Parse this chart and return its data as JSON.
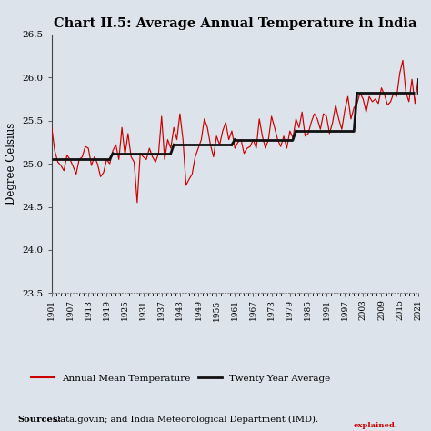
{
  "title": "Chart II.5: Average Annual Temperature in India",
  "ylabel": "Degree Celsius",
  "source_bold": "Sources:",
  "source_rest": " Data.gov.in; and India Meteorological Department (IMD).",
  "legend_line1": "Annual Mean Temperature",
  "legend_line2": "Twenty Year Average",
  "bg_color": "#dce3ea",
  "line_color": "#cc0000",
  "avg_line_color": "#111111",
  "ylim": [
    23.5,
    26.5
  ],
  "years": [
    1901,
    1902,
    1903,
    1904,
    1905,
    1906,
    1907,
    1908,
    1909,
    1910,
    1911,
    1912,
    1913,
    1914,
    1915,
    1916,
    1917,
    1918,
    1919,
    1920,
    1921,
    1922,
    1923,
    1924,
    1925,
    1926,
    1927,
    1928,
    1929,
    1930,
    1931,
    1932,
    1933,
    1934,
    1935,
    1936,
    1937,
    1938,
    1939,
    1940,
    1941,
    1942,
    1943,
    1944,
    1945,
    1946,
    1947,
    1948,
    1949,
    1950,
    1951,
    1952,
    1953,
    1954,
    1955,
    1956,
    1957,
    1958,
    1959,
    1960,
    1961,
    1962,
    1963,
    1964,
    1965,
    1966,
    1967,
    1968,
    1969,
    1970,
    1971,
    1972,
    1973,
    1974,
    1975,
    1976,
    1977,
    1978,
    1979,
    1980,
    1981,
    1982,
    1983,
    1984,
    1985,
    1986,
    1987,
    1988,
    1989,
    1990,
    1991,
    1992,
    1993,
    1994,
    1995,
    1996,
    1997,
    1998,
    1999,
    2000,
    2001,
    2002,
    2003,
    2004,
    2005,
    2006,
    2007,
    2008,
    2009,
    2010,
    2011,
    2012,
    2013,
    2014,
    2015,
    2016,
    2017,
    2018,
    2019,
    2020,
    2021
  ],
  "temps": [
    25.42,
    25.15,
    25.02,
    24.98,
    24.92,
    25.1,
    25.05,
    24.97,
    24.88,
    25.05,
    25.08,
    25.2,
    25.18,
    24.98,
    25.08,
    25.0,
    24.85,
    24.9,
    25.05,
    25.0,
    25.15,
    25.22,
    25.05,
    25.42,
    25.1,
    25.35,
    25.08,
    25.02,
    24.55,
    25.12,
    25.08,
    25.05,
    25.18,
    25.08,
    25.02,
    25.12,
    25.55,
    25.05,
    25.28,
    25.18,
    25.42,
    25.28,
    25.58,
    25.28,
    24.75,
    24.82,
    24.88,
    25.08,
    25.18,
    25.28,
    25.52,
    25.42,
    25.22,
    25.08,
    25.32,
    25.22,
    25.38,
    25.48,
    25.28,
    25.38,
    25.18,
    25.25,
    25.28,
    25.12,
    25.18,
    25.2,
    25.28,
    25.18,
    25.52,
    25.32,
    25.18,
    25.28,
    25.55,
    25.42,
    25.28,
    25.2,
    25.32,
    25.18,
    25.38,
    25.3,
    25.52,
    25.42,
    25.6,
    25.32,
    25.35,
    25.48,
    25.58,
    25.52,
    25.4,
    25.58,
    25.55,
    25.35,
    25.48,
    25.68,
    25.52,
    25.4,
    25.62,
    25.78,
    25.52,
    25.65,
    25.7,
    25.82,
    25.75,
    25.6,
    25.78,
    25.72,
    25.75,
    25.7,
    25.88,
    25.8,
    25.68,
    25.72,
    25.82,
    25.78,
    26.05,
    26.2,
    25.83,
    25.72,
    25.98,
    25.7,
    25.98
  ],
  "twenty_year_segments": [
    {
      "x_start": 1901,
      "x_end": 1920,
      "y": 25.05
    },
    {
      "x_start": 1921,
      "x_end": 1940,
      "y": 25.12
    },
    {
      "x_start": 1941,
      "x_end": 1960,
      "y": 25.22
    },
    {
      "x_start": 1961,
      "x_end": 1980,
      "y": 25.28
    },
    {
      "x_start": 1981,
      "x_end": 2000,
      "y": 25.38
    },
    {
      "x_start": 2001,
      "x_end": 2020,
      "y": 25.82
    },
    {
      "x_start": 2021,
      "x_end": 2021,
      "y": 25.98
    }
  ],
  "xtick_years": [
    1901,
    1907,
    1913,
    1919,
    1925,
    1931,
    1937,
    1943,
    1949,
    1955,
    1961,
    1967,
    1973,
    1979,
    1985,
    1991,
    1997,
    2003,
    2009,
    2015,
    2021
  ],
  "yticks": [
    23.5,
    24.0,
    24.5,
    25.0,
    25.5,
    26.0,
    26.5
  ]
}
